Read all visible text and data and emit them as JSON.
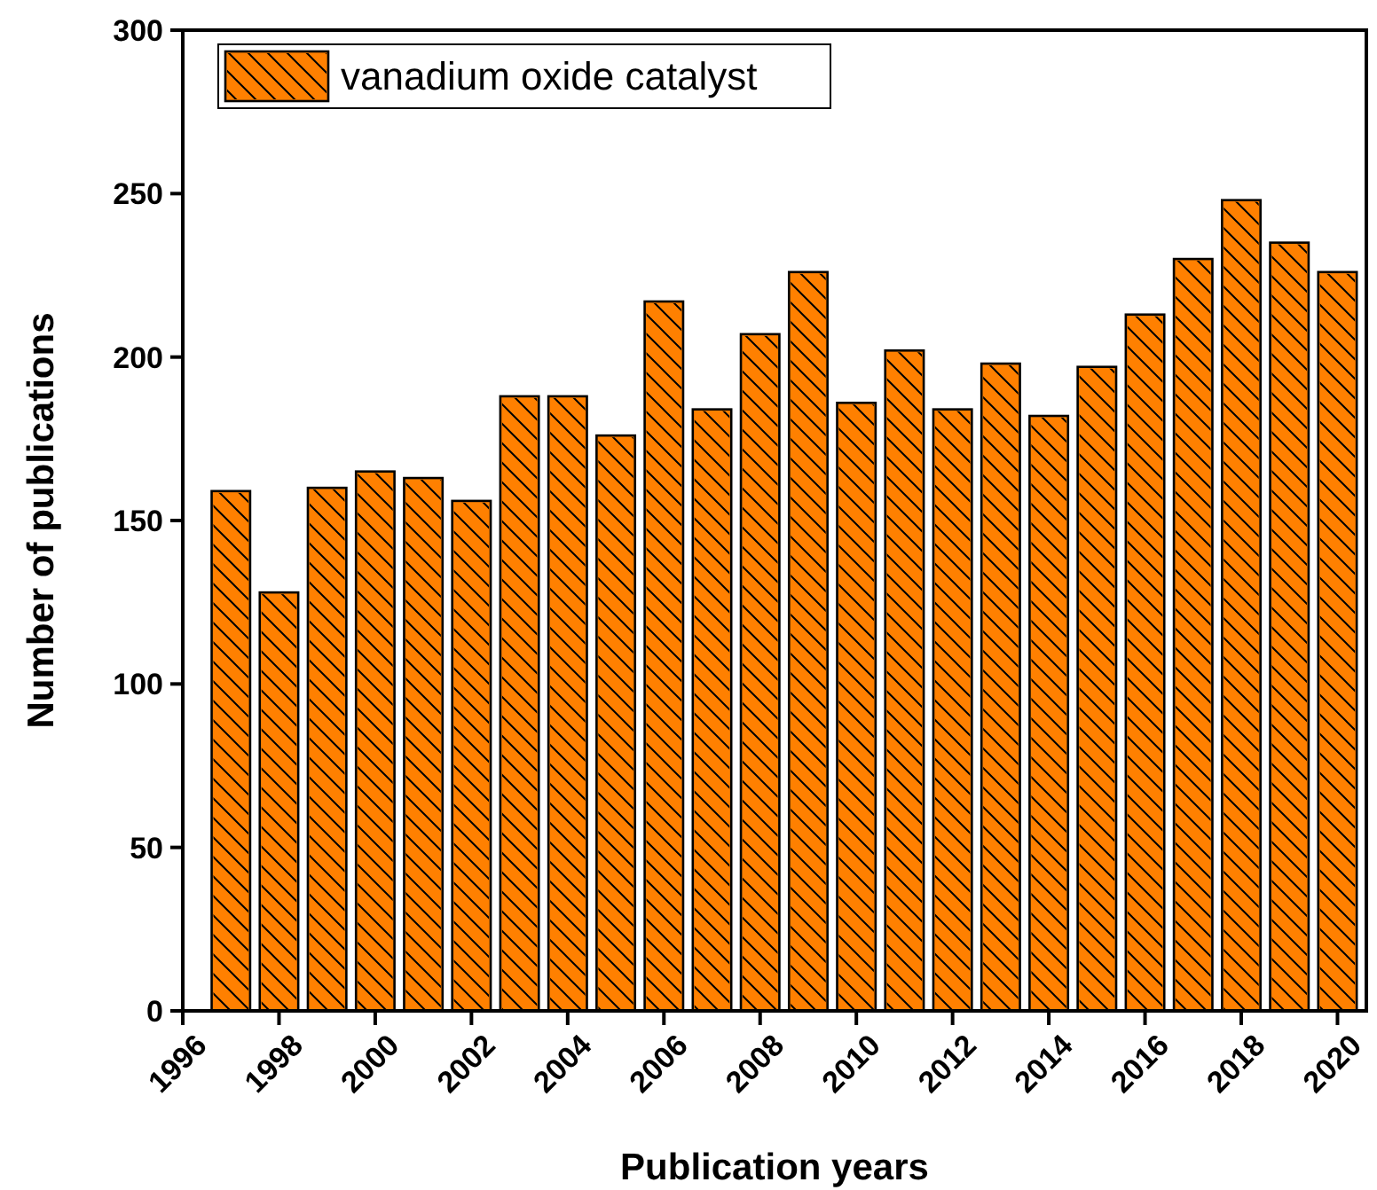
{
  "chart_data": {
    "type": "bar",
    "xlabel": "Publication years",
    "ylabel": "Number of publications",
    "x": [
      1997,
      1998,
      1999,
      2000,
      2001,
      2002,
      2003,
      2004,
      2005,
      2006,
      2007,
      2008,
      2009,
      2010,
      2011,
      2012,
      2013,
      2014,
      2015,
      2016,
      2017,
      2018,
      2019,
      2020
    ],
    "series": [
      {
        "name": "vanadium oxide catalyst",
        "color": "#ff8000",
        "values": [
          159,
          128,
          160,
          165,
          163,
          156,
          188,
          188,
          176,
          217,
          184,
          207,
          226,
          186,
          202,
          184,
          198,
          182,
          197,
          213,
          230,
          248,
          235,
          226
        ]
      }
    ],
    "xlim": [
      1996,
      2020.6
    ],
    "xticks": [
      1996,
      1998,
      2000,
      2002,
      2004,
      2006,
      2008,
      2010,
      2012,
      2014,
      2016,
      2018,
      2020
    ],
    "ylim": [
      0,
      300
    ],
    "yticks": [
      0,
      50,
      100,
      150,
      200,
      250,
      300
    ],
    "grid": false,
    "legend": "top left"
  }
}
